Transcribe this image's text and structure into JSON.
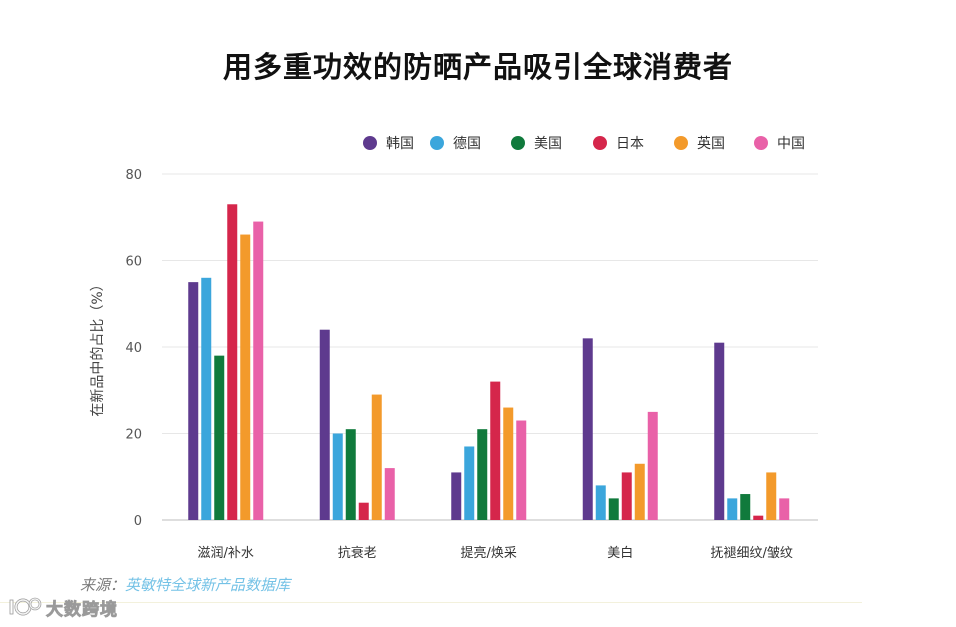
{
  "title": "用多重功效的防晒产品吸引全球消费者",
  "source": {
    "label": "来源：",
    "text": "英敏特全球新产品数据库"
  },
  "watermark": "大数跨境",
  "chart_data": {
    "type": "bar",
    "title": "用多重功效的防晒产品吸引全球消费者",
    "xlabel": "",
    "ylabel": "在新品中的占比（%）",
    "ylim": [
      0,
      80
    ],
    "yticks": [
      0,
      20,
      40,
      60,
      80
    ],
    "grid": true,
    "legend": "top-right",
    "categories": [
      "滋润/补水",
      "抗衰老",
      "提亮/焕采",
      "美白",
      "抚褪细纹/皱纹"
    ],
    "series": [
      {
        "name": "韩国",
        "color": "#5e3a8e",
        "values": [
          55,
          44,
          11,
          42,
          41
        ]
      },
      {
        "name": "德国",
        "color": "#3ba6dc",
        "values": [
          56,
          20,
          17,
          8,
          5
        ]
      },
      {
        "name": "美国",
        "color": "#107a3c",
        "values": [
          38,
          21,
          21,
          5,
          6
        ]
      },
      {
        "name": "日本",
        "color": "#d5264b",
        "values": [
          73,
          4,
          32,
          11,
          1
        ]
      },
      {
        "name": "英国",
        "color": "#f39a2b",
        "values": [
          66,
          29,
          26,
          13,
          11
        ]
      },
      {
        "name": "中国",
        "color": "#e961a8",
        "values": [
          69,
          12,
          23,
          25,
          5
        ]
      }
    ]
  }
}
